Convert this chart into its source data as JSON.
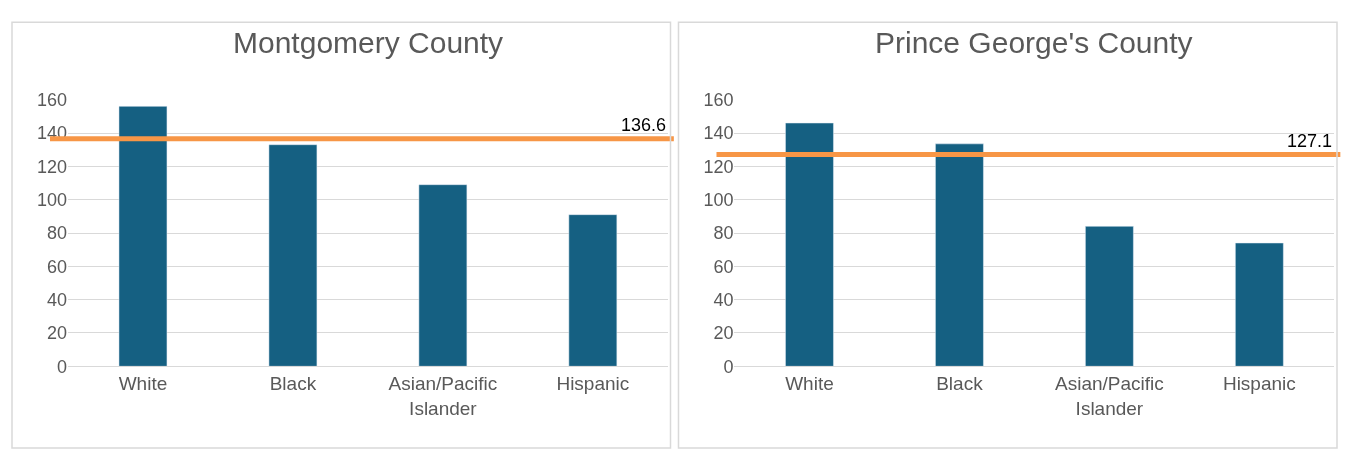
{
  "chart_data": [
    {
      "type": "bar",
      "title": "Montgomery County",
      "categories": [
        "White",
        "Black",
        "Asian/Pacific Islander",
        "Hispanic"
      ],
      "values": [
        156,
        133,
        109,
        91
      ],
      "color": "#156082",
      "ylim": [
        0,
        160
      ],
      "yticks": [
        0,
        20,
        40,
        60,
        80,
        100,
        120,
        140,
        160
      ],
      "grid": "y",
      "ref_lines": [
        {
          "axis": "y",
          "value": 136.6,
          "label": "136.6",
          "color": "#f79646"
        }
      ]
    },
    {
      "type": "bar",
      "title": "Prince George's County",
      "categories": [
        "White",
        "Black",
        "Asian/Pacific Islander",
        "Hispanic"
      ],
      "values": [
        146,
        133.5,
        84,
        74
      ],
      "color": "#156082",
      "ylim": [
        0,
        160
      ],
      "yticks": [
        0,
        20,
        40,
        60,
        80,
        100,
        120,
        140,
        160
      ],
      "grid": "y",
      "ref_lines": [
        {
          "axis": "y",
          "value": 127.1,
          "label": "127.1",
          "color": "#f79646"
        }
      ]
    }
  ]
}
